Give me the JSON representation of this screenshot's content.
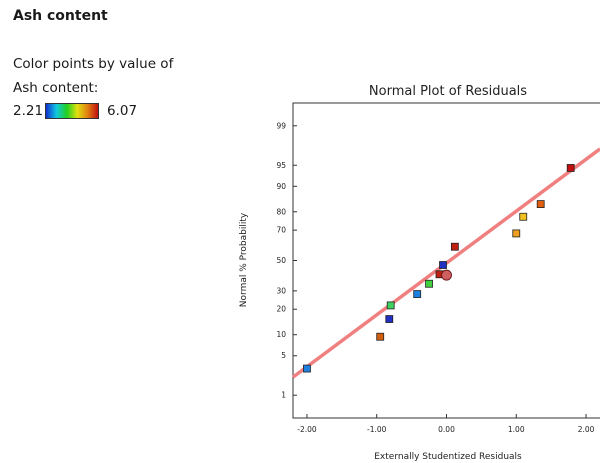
{
  "panel": {
    "title": "Ash content",
    "color_by_label": "Color points by value of",
    "color_variable": "Ash content:",
    "scale_min": "2.21",
    "scale_max": "6.07"
  },
  "chart_data": {
    "type": "scatter",
    "title": "Normal Plot of Residuals",
    "xlabel": "Externally Studentized Residuals",
    "ylabel": "Normal % Probability",
    "xlim": [
      -2.2,
      2.2
    ],
    "x_ticks": [
      -2.0,
      -1.0,
      0.0,
      1.0,
      2.0
    ],
    "x_tick_labels": [
      "-2.00",
      "-1.00",
      "0.00",
      "1.00",
      "2.00"
    ],
    "y_scale": "normal-probability",
    "y_ticks": [
      1,
      5,
      10,
      20,
      30,
      50,
      70,
      80,
      90,
      95,
      99
    ],
    "y_tick_labels": [
      "1",
      "5",
      "10",
      "20",
      "30",
      "50",
      "70",
      "80",
      "90",
      "95",
      "99"
    ],
    "color_scale": {
      "min": 2.21,
      "max": 6.07,
      "colors": [
        "#1030d0",
        "#10c8e0",
        "#20d020",
        "#e0e010",
        "#e08010",
        "#c01010"
      ]
    },
    "reference_line": {
      "color": "#f08080",
      "x": [
        -2.2,
        2.2
      ],
      "y": [
        2.2,
        97.3
      ]
    },
    "points": [
      {
        "x": -2.0,
        "y": 3.1,
        "color": "#2080e0"
      },
      {
        "x": -0.95,
        "y": 9.4,
        "color": "#d06010"
      },
      {
        "x": -0.82,
        "y": 15.6,
        "color": "#2030c0"
      },
      {
        "x": -0.8,
        "y": 21.9,
        "color": "#40d060"
      },
      {
        "x": -0.42,
        "y": 28.1,
        "color": "#2080e0"
      },
      {
        "x": -0.25,
        "y": 34.4,
        "color": "#40d040"
      },
      {
        "x": -0.1,
        "y": 40.6,
        "color": "#c02010"
      },
      {
        "x": 0.0,
        "y": 40.0,
        "color": "#d06060",
        "highlight": true
      },
      {
        "x": -0.05,
        "y": 46.9,
        "color": "#2030c0"
      },
      {
        "x": 0.12,
        "y": 59.4,
        "color": "#c02010"
      },
      {
        "x": 1.0,
        "y": 68.0,
        "color": "#f0a020"
      },
      {
        "x": 1.1,
        "y": 77.5,
        "color": "#f0c020"
      },
      {
        "x": 1.35,
        "y": 83.5,
        "color": "#e06010"
      },
      {
        "x": 1.78,
        "y": 94.5,
        "color": "#c01010"
      }
    ]
  }
}
